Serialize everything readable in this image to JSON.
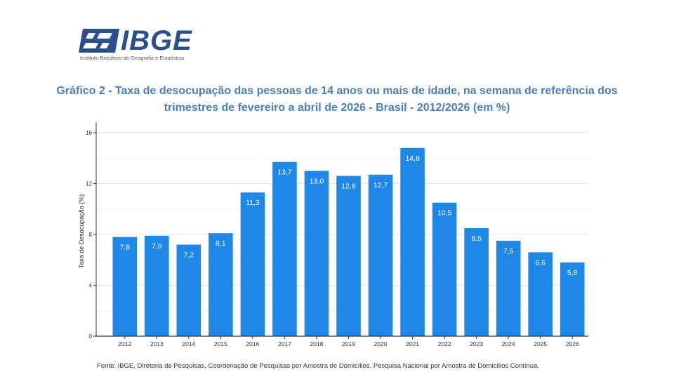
{
  "logo": {
    "wordmark": "IBGE",
    "subtitle": "Instituto Brasileiro de Geografia e Estatística",
    "icon": "ibge-logo-mark"
  },
  "chart_data": {
    "type": "bar",
    "title": "Gráfico 2 - Taxa de desocupação das pessoas de 14 anos ou mais de idade, na semana de referência dos trimestres de fevereiro a abril de 2026 - Brasil - 2012/2026 (em %)",
    "xlabel": "",
    "ylabel": "Taxa de Desocupação (%)",
    "ylim": [
      0,
      16.5
    ],
    "yticks": [
      0,
      4,
      8,
      12,
      16
    ],
    "grid": true,
    "legend": "none",
    "categories": [
      "2012",
      "2013",
      "2014",
      "2015",
      "2016",
      "2017",
      "2018",
      "2019",
      "2020",
      "2021",
      "2022",
      "2023",
      "2024",
      "2025",
      "2026"
    ],
    "values": [
      7.8,
      7.9,
      7.2,
      8.1,
      11.3,
      13.7,
      13.0,
      12.6,
      12.7,
      14.8,
      10.5,
      8.5,
      7.5,
      6.6,
      5.8
    ],
    "value_labels": [
      "7,8",
      "7,9",
      "7,2",
      "8,1",
      "11,3",
      "13,7",
      "13,0",
      "12,6",
      "12,7",
      "14,8",
      "10,5",
      "8,5",
      "7,5",
      "6,6",
      "5,8"
    ],
    "bar_color": "#1f87e8",
    "label_color": "#ffffff"
  },
  "source": "Fonte: IBGE, Diretoria de Pesquisas, Coordenação de Pesquisas por Amostra de Domicílios, Pesquisa Nacional por Amostra de Domicílios Contínua."
}
